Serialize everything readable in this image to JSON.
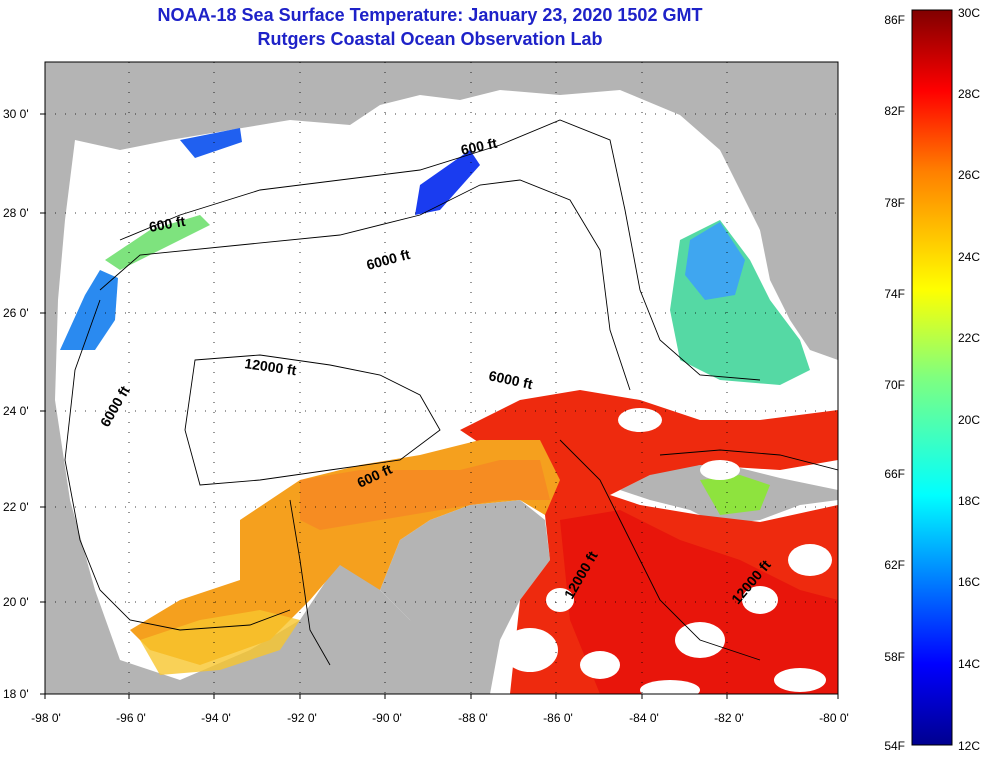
{
  "header": {
    "title": "NOAA-18 Sea Surface Temperature:  January 23, 2020 1502 GMT",
    "subtitle": "Rutgers Coastal Ocean Observation Lab"
  },
  "map": {
    "lon_labels": [
      "-98 0'",
      "-96 0'",
      "-94 0'",
      "-92 0'",
      "-90 0'",
      "-88 0'",
      "-86 0'",
      "-84 0'",
      "-82 0'",
      "-80 0'"
    ],
    "lat_labels": [
      "30 0'",
      "28 0'",
      "26 0'",
      "24 0'",
      "22 0'",
      "20 0'",
      "18 0'"
    ],
    "contour_labels": [
      "600 ft",
      "600 ft",
      "600 ft",
      "6000 ft",
      "6000 ft",
      "6000 ft",
      "12000 ft",
      "12000 ft",
      "12000 ft"
    ],
    "land_color": "#b4b4b4",
    "cloud_color": "#ffffff"
  },
  "colorbar": {
    "fahrenheit_labels": [
      "86F",
      "82F",
      "78F",
      "74F",
      "70F",
      "66F",
      "62F",
      "58F",
      "54F"
    ],
    "celsius_labels": [
      "30C",
      "28C",
      "26C",
      "24C",
      "22C",
      "20C",
      "18C",
      "16C",
      "14C",
      "12C"
    ],
    "range_c": [
      12,
      30
    ],
    "colormap": "jet"
  }
}
